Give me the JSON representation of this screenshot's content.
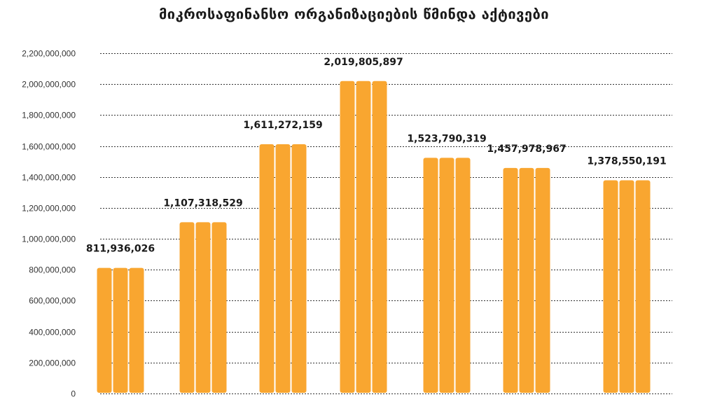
{
  "chart_data": {
    "type": "bar",
    "title": "მიკროსაფინანსო ორგანიზაციების წმინდა აქტივები",
    "categories": [
      "",
      "",
      "",
      "",
      "",
      "",
      ""
    ],
    "values": [
      811936026,
      1107318529,
      1611272159,
      2019805897,
      1523790319,
      1457978967,
      1378550191
    ],
    "data_labels": [
      "811,936,026",
      "1,107,318,529",
      "1,611,272,159",
      "2,019,805,897",
      "1,523,790,319",
      "1,457,978,967",
      "1,378,550,191"
    ],
    "y_ticks": [
      0,
      200000000,
      400000000,
      600000000,
      800000000,
      1000000000,
      1200000000,
      1400000000,
      1600000000,
      1800000000,
      2000000000,
      2200000000
    ],
    "y_tick_labels": [
      "0",
      "200,000,000",
      "400,000,000",
      "600,000,000",
      "800,000,000",
      "1,000,000,000",
      "1,200,000,000",
      "1,400,000,000",
      "1,600,000,000",
      "1,800,000,000",
      "2,000,000,000",
      "2,200,000,000"
    ],
    "ylim": [
      0,
      2200000000
    ],
    "xlabel": "",
    "ylabel": "",
    "grid": true,
    "bar_color": "#F9A630"
  }
}
